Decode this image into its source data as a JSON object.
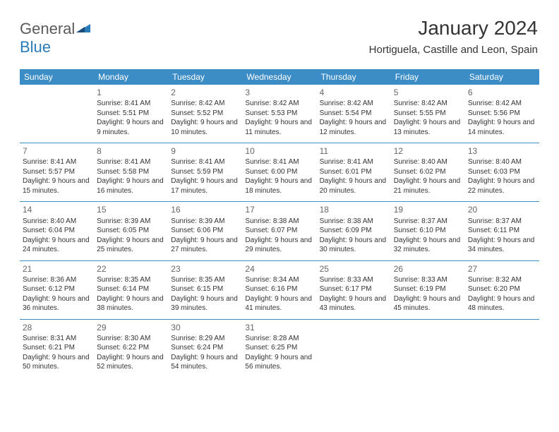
{
  "brand": {
    "part1": "General",
    "part2": "Blue"
  },
  "title": "January 2024",
  "location": "Hortiguela, Castille and Leon, Spain",
  "colors": {
    "header_bg": "#3c8dc5",
    "header_fg": "#ffffff",
    "row_border": "#3c8dc5",
    "text": "#333333",
    "daynum": "#666666",
    "logo_gray": "#5a5a5a",
    "logo_blue": "#2a7cb8",
    "logo_dark": "#1a4e78"
  },
  "day_headers": [
    "Sunday",
    "Monday",
    "Tuesday",
    "Wednesday",
    "Thursday",
    "Friday",
    "Saturday"
  ],
  "labels": {
    "sunrise": "Sunrise:",
    "sunset": "Sunset:",
    "daylight": "Daylight:"
  },
  "weeks": [
    [
      null,
      {
        "n": "1",
        "sr": "8:41 AM",
        "ss": "5:51 PM",
        "dl": "9 hours and 9 minutes."
      },
      {
        "n": "2",
        "sr": "8:42 AM",
        "ss": "5:52 PM",
        "dl": "9 hours and 10 minutes."
      },
      {
        "n": "3",
        "sr": "8:42 AM",
        "ss": "5:53 PM",
        "dl": "9 hours and 11 minutes."
      },
      {
        "n": "4",
        "sr": "8:42 AM",
        "ss": "5:54 PM",
        "dl": "9 hours and 12 minutes."
      },
      {
        "n": "5",
        "sr": "8:42 AM",
        "ss": "5:55 PM",
        "dl": "9 hours and 13 minutes."
      },
      {
        "n": "6",
        "sr": "8:42 AM",
        "ss": "5:56 PM",
        "dl": "9 hours and 14 minutes."
      }
    ],
    [
      {
        "n": "7",
        "sr": "8:41 AM",
        "ss": "5:57 PM",
        "dl": "9 hours and 15 minutes."
      },
      {
        "n": "8",
        "sr": "8:41 AM",
        "ss": "5:58 PM",
        "dl": "9 hours and 16 minutes."
      },
      {
        "n": "9",
        "sr": "8:41 AM",
        "ss": "5:59 PM",
        "dl": "9 hours and 17 minutes."
      },
      {
        "n": "10",
        "sr": "8:41 AM",
        "ss": "6:00 PM",
        "dl": "9 hours and 18 minutes."
      },
      {
        "n": "11",
        "sr": "8:41 AM",
        "ss": "6:01 PM",
        "dl": "9 hours and 20 minutes."
      },
      {
        "n": "12",
        "sr": "8:40 AM",
        "ss": "6:02 PM",
        "dl": "9 hours and 21 minutes."
      },
      {
        "n": "13",
        "sr": "8:40 AM",
        "ss": "6:03 PM",
        "dl": "9 hours and 22 minutes."
      }
    ],
    [
      {
        "n": "14",
        "sr": "8:40 AM",
        "ss": "6:04 PM",
        "dl": "9 hours and 24 minutes."
      },
      {
        "n": "15",
        "sr": "8:39 AM",
        "ss": "6:05 PM",
        "dl": "9 hours and 25 minutes."
      },
      {
        "n": "16",
        "sr": "8:39 AM",
        "ss": "6:06 PM",
        "dl": "9 hours and 27 minutes."
      },
      {
        "n": "17",
        "sr": "8:38 AM",
        "ss": "6:07 PM",
        "dl": "9 hours and 29 minutes."
      },
      {
        "n": "18",
        "sr": "8:38 AM",
        "ss": "6:09 PM",
        "dl": "9 hours and 30 minutes."
      },
      {
        "n": "19",
        "sr": "8:37 AM",
        "ss": "6:10 PM",
        "dl": "9 hours and 32 minutes."
      },
      {
        "n": "20",
        "sr": "8:37 AM",
        "ss": "6:11 PM",
        "dl": "9 hours and 34 minutes."
      }
    ],
    [
      {
        "n": "21",
        "sr": "8:36 AM",
        "ss": "6:12 PM",
        "dl": "9 hours and 36 minutes."
      },
      {
        "n": "22",
        "sr": "8:35 AM",
        "ss": "6:14 PM",
        "dl": "9 hours and 38 minutes."
      },
      {
        "n": "23",
        "sr": "8:35 AM",
        "ss": "6:15 PM",
        "dl": "9 hours and 39 minutes."
      },
      {
        "n": "24",
        "sr": "8:34 AM",
        "ss": "6:16 PM",
        "dl": "9 hours and 41 minutes."
      },
      {
        "n": "25",
        "sr": "8:33 AM",
        "ss": "6:17 PM",
        "dl": "9 hours and 43 minutes."
      },
      {
        "n": "26",
        "sr": "8:33 AM",
        "ss": "6:19 PM",
        "dl": "9 hours and 45 minutes."
      },
      {
        "n": "27",
        "sr": "8:32 AM",
        "ss": "6:20 PM",
        "dl": "9 hours and 48 minutes."
      }
    ],
    [
      {
        "n": "28",
        "sr": "8:31 AM",
        "ss": "6:21 PM",
        "dl": "9 hours and 50 minutes."
      },
      {
        "n": "29",
        "sr": "8:30 AM",
        "ss": "6:22 PM",
        "dl": "9 hours and 52 minutes."
      },
      {
        "n": "30",
        "sr": "8:29 AM",
        "ss": "6:24 PM",
        "dl": "9 hours and 54 minutes."
      },
      {
        "n": "31",
        "sr": "8:28 AM",
        "ss": "6:25 PM",
        "dl": "9 hours and 56 minutes."
      },
      null,
      null,
      null
    ]
  ]
}
